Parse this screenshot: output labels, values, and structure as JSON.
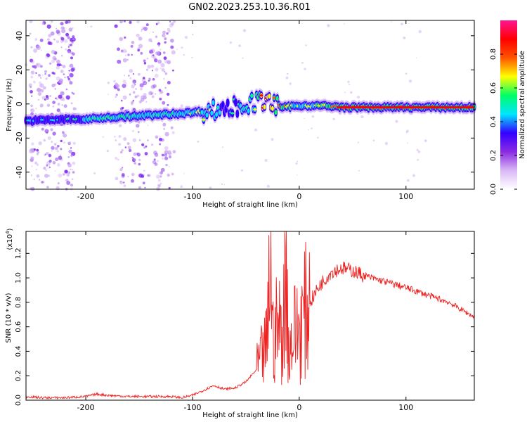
{
  "title": "GN02.2023.253.10.36.R01",
  "chart_data": [
    {
      "type": "heatmap",
      "xlabel": "Height of straight line (km)",
      "ylabel": "Frequency (Hz)",
      "xlim": [
        -256,
        164
      ],
      "ylim": [
        -50,
        49
      ],
      "xticks": [
        -200,
        -100,
        0,
        100
      ],
      "yticks": [
        -40,
        -20,
        0,
        20,
        40
      ],
      "colorbar": {
        "label": "Normalized spectral amplitude",
        "range": [
          0.0,
          1.0
        ],
        "ticks": [
          0.0,
          0.2,
          0.4,
          0.6,
          0.8
        ],
        "colormap": [
          "#ffffff",
          "#d9b8f5",
          "#8a2be2",
          "#3300ff",
          "#00e5ff",
          "#00ff66",
          "#ffff00",
          "#ff5500",
          "#ff0000",
          "#ff1493"
        ]
      },
      "ridge": {
        "x": [
          -256,
          -220,
          -200,
          -180,
          -150,
          -120,
          -100,
          -85,
          -75,
          -65,
          -55,
          -45,
          -35,
          -25,
          -15,
          0,
          20,
          40,
          60,
          80,
          100,
          120,
          164
        ],
        "frequency": [
          -10,
          -9,
          -9,
          -8,
          -7,
          -6,
          -5,
          -4,
          -3,
          -2,
          -1,
          0,
          2,
          0,
          -2,
          -1,
          -1,
          -2,
          -2,
          -2,
          -2,
          -2,
          -2
        ],
        "peak_amplitude": [
          0.5,
          0.55,
          0.6,
          0.6,
          0.6,
          0.65,
          0.7,
          0.7,
          0.6,
          0.55,
          0.6,
          0.6,
          0.95,
          0.9,
          0.8,
          0.7,
          0.75,
          0.85,
          0.85,
          0.85,
          0.85,
          0.85,
          0.85
        ]
      },
      "scatter_band": [
        {
          "x_range": [
            -252,
            -210
          ],
          "freq_range": [
            -50,
            49
          ],
          "amplitude": 0.3
        },
        {
          "x_range": [
            -172,
            -117
          ],
          "freq_range": [
            -50,
            49
          ],
          "amplitude": 0.3
        }
      ]
    },
    {
      "type": "line",
      "xlabel": "Height of straight line (km)",
      "ylabel": "SNR (10 * v/v)",
      "multiplier_label": "(x10",
      "multiplier_exp": "4",
      "multiplier_close": ")",
      "xlim": [
        -256,
        164
      ],
      "ylim": [
        0,
        1.38
      ],
      "xticks": [
        -200,
        -100,
        0,
        100
      ],
      "yticks": [
        0.0,
        0.2,
        0.4,
        0.6,
        0.8,
        1.0,
        1.2
      ],
      "series": [
        {
          "color": "#ee2222",
          "x": [
            -256,
            -240,
            -220,
            -200,
            -190,
            -180,
            -160,
            -140,
            -120,
            -110,
            -100,
            -90,
            -80,
            -70,
            -60,
            -50,
            -40,
            -30,
            -27,
            -25,
            -20,
            -15,
            -12,
            -10,
            -5,
            0,
            10,
            20,
            30,
            40,
            50,
            60,
            80,
            100,
            120,
            140,
            164
          ],
          "values": [
            0.03,
            0.02,
            0.02,
            0.03,
            0.05,
            0.04,
            0.03,
            0.03,
            0.03,
            0.02,
            0.04,
            0.08,
            0.12,
            0.09,
            0.1,
            0.15,
            0.25,
            0.45,
            1.3,
            0.5,
            0.6,
            0.55,
            1.38,
            0.4,
            0.55,
            0.6,
            0.8,
            0.95,
            1.05,
            1.08,
            1.06,
            1.02,
            0.97,
            0.92,
            0.86,
            0.8,
            0.68
          ]
        }
      ]
    }
  ]
}
